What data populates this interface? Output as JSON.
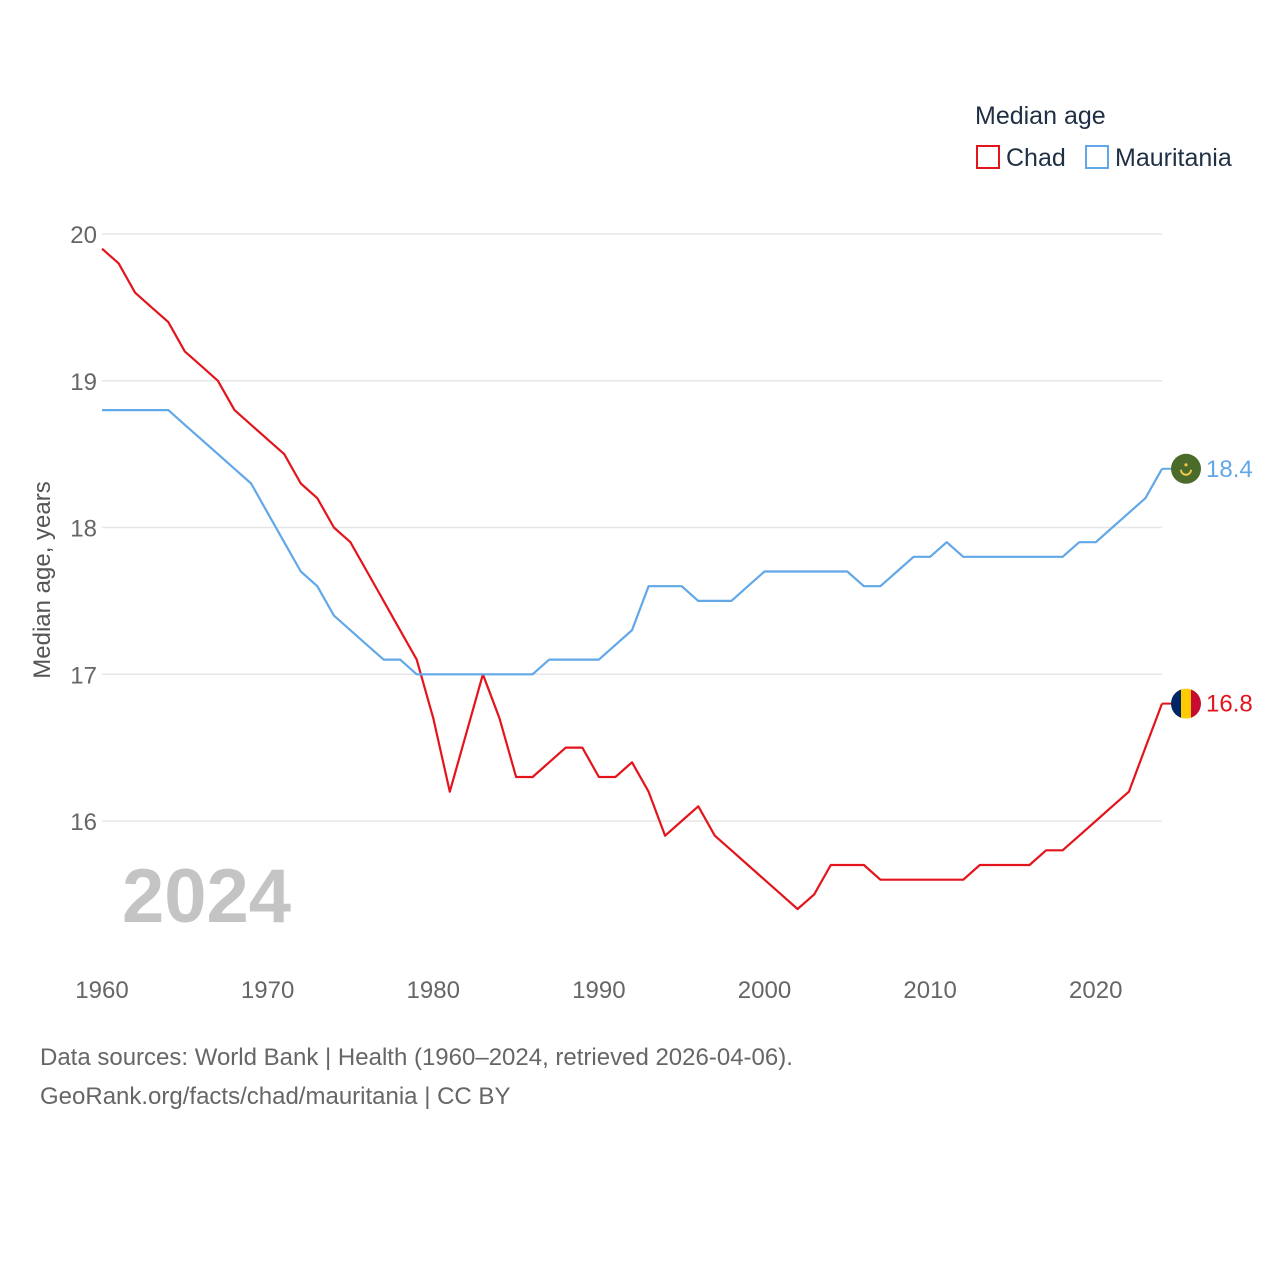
{
  "chart_data": {
    "type": "line",
    "legend_title": "Median age",
    "legend_placement": "top-right",
    "ylabel": "Median age, years",
    "xlabel": "",
    "xlim": [
      1960,
      2024
    ],
    "ylim": [
      15.0,
      20.3
    ],
    "x_ticks": [
      1960,
      1970,
      1980,
      1990,
      2000,
      2010,
      2020
    ],
    "y_ticks": [
      16,
      17,
      18,
      19,
      20
    ],
    "grid": true,
    "year_watermark": "2024",
    "x": [
      1960,
      1961,
      1962,
      1963,
      1964,
      1965,
      1966,
      1967,
      1968,
      1969,
      1970,
      1971,
      1972,
      1973,
      1974,
      1975,
      1976,
      1977,
      1978,
      1979,
      1980,
      1981,
      1982,
      1983,
      1984,
      1985,
      1986,
      1987,
      1988,
      1989,
      1990,
      1991,
      1992,
      1993,
      1994,
      1995,
      1996,
      1997,
      1998,
      1999,
      2000,
      2001,
      2002,
      2003,
      2004,
      2005,
      2006,
      2007,
      2008,
      2009,
      2010,
      2011,
      2012,
      2013,
      2014,
      2015,
      2016,
      2017,
      2018,
      2019,
      2020,
      2021,
      2022,
      2023,
      2024
    ],
    "series": [
      {
        "name": "Chad",
        "color": "#e3141b",
        "end_label": "16.8",
        "flag": "chad-flag",
        "values": [
          19.9,
          19.8,
          19.6,
          19.5,
          19.4,
          19.2,
          19.1,
          19.0,
          18.8,
          18.7,
          18.6,
          18.5,
          18.3,
          18.2,
          18.0,
          17.9,
          17.7,
          17.5,
          17.3,
          17.1,
          16.7,
          16.2,
          16.6,
          17.0,
          16.7,
          16.3,
          16.3,
          16.4,
          16.5,
          16.5,
          16.3,
          16.3,
          16.4,
          16.2,
          15.9,
          16.0,
          16.1,
          15.9,
          15.8,
          15.7,
          15.6,
          15.5,
          15.4,
          15.5,
          15.7,
          15.7,
          15.7,
          15.6,
          15.6,
          15.6,
          15.6,
          15.6,
          15.6,
          15.7,
          15.7,
          15.7,
          15.7,
          15.8,
          15.8,
          15.9,
          16.0,
          16.1,
          16.2,
          16.5,
          16.8
        ]
      },
      {
        "name": "Mauritania",
        "color": "#62a8e8",
        "end_label": "18.4",
        "flag": "mauritania-flag",
        "values": [
          18.8,
          18.8,
          18.8,
          18.8,
          18.8,
          18.7,
          18.6,
          18.5,
          18.4,
          18.3,
          18.1,
          17.9,
          17.7,
          17.6,
          17.4,
          17.3,
          17.2,
          17.1,
          17.1,
          17.0,
          17.0,
          17.0,
          17.0,
          17.0,
          17.0,
          17.0,
          17.0,
          17.1,
          17.1,
          17.1,
          17.1,
          17.2,
          17.3,
          17.6,
          17.6,
          17.6,
          17.5,
          17.5,
          17.5,
          17.6,
          17.7,
          17.7,
          17.7,
          17.7,
          17.7,
          17.7,
          17.6,
          17.6,
          17.7,
          17.8,
          17.8,
          17.9,
          17.8,
          17.8,
          17.8,
          17.8,
          17.8,
          17.8,
          17.8,
          17.9,
          17.9,
          18.0,
          18.1,
          18.2,
          18.4
        ]
      }
    ]
  },
  "footer": {
    "sources": "Data sources: World Bank | Health (1960–2024, retrieved 2026-04-06).",
    "attribution": "GeoRank.org/facts/chad/mauritania | CC BY"
  }
}
